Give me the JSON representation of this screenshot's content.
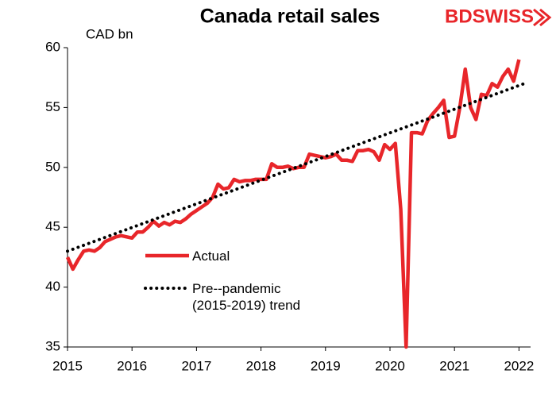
{
  "chart_data": {
    "type": "line",
    "title": "Canada retail sales",
    "logo": "BDSWISS",
    "y_label": "CAD bn",
    "xlim": [
      2015,
      2022.18
    ],
    "xticks": [
      2015,
      2016,
      2017,
      2018,
      2019,
      2020,
      2021,
      2022
    ],
    "ylim": [
      35,
      60
    ],
    "yticks": [
      35,
      40,
      45,
      50,
      55,
      60
    ],
    "series": [
      {
        "name": "Actual",
        "color": "#e8262a",
        "style": "solid",
        "x": [
          2015,
          2015.083,
          2015.167,
          2015.25,
          2015.333,
          2015.417,
          2015.5,
          2015.583,
          2015.667,
          2015.75,
          2015.833,
          2015.917,
          2016,
          2016.083,
          2016.167,
          2016.25,
          2016.333,
          2016.417,
          2016.5,
          2016.583,
          2016.667,
          2016.75,
          2016.833,
          2016.917,
          2017,
          2017.083,
          2017.167,
          2017.25,
          2017.333,
          2017.417,
          2017.5,
          2017.583,
          2017.667,
          2017.75,
          2017.833,
          2017.917,
          2018,
          2018.083,
          2018.167,
          2018.25,
          2018.333,
          2018.417,
          2018.5,
          2018.583,
          2018.667,
          2018.75,
          2018.833,
          2018.917,
          2019,
          2019.083,
          2019.167,
          2019.25,
          2019.333,
          2019.417,
          2019.5,
          2019.583,
          2019.667,
          2019.75,
          2019.833,
          2019.917,
          2020,
          2020.083,
          2020.167,
          2020.25,
          2020.333,
          2020.417,
          2020.5,
          2020.583,
          2020.667,
          2020.75,
          2020.833,
          2020.917,
          2021,
          2021.083,
          2021.167,
          2021.25,
          2021.333,
          2021.417,
          2021.5,
          2021.583,
          2021.667,
          2021.75,
          2021.833,
          2021.917,
          2022
        ],
        "values": [
          42.5,
          41.5,
          42.3,
          43.0,
          43.1,
          43.0,
          43.3,
          43.8,
          44.0,
          44.2,
          44.3,
          44.2,
          44.1,
          44.6,
          44.6,
          45.0,
          45.5,
          45.1,
          45.4,
          45.2,
          45.5,
          45.4,
          45.7,
          46.1,
          46.4,
          46.7,
          47.0,
          47.5,
          48.6,
          48.2,
          48.3,
          49.0,
          48.8,
          48.9,
          48.9,
          49.0,
          49.0,
          49.0,
          50.3,
          50.0,
          50.0,
          50.1,
          49.9,
          50.0,
          50.0,
          51.1,
          51.0,
          50.9,
          50.8,
          50.9,
          51.1,
          50.6,
          50.6,
          50.5,
          51.4,
          51.4,
          51.5,
          51.3,
          50.6,
          51.9,
          51.5,
          52.0,
          46.5,
          35.0,
          52.9,
          52.9,
          52.8,
          53.9,
          54.5,
          55.0,
          55.6,
          52.5,
          52.6,
          55.0,
          58.2,
          55.0,
          54.0,
          56.1,
          56.0,
          57.0,
          56.7,
          57.6,
          58.2,
          57.2,
          59.0
        ]
      },
      {
        "name": "Pre--pandemic (2015-2019) trend",
        "color": "#000000",
        "style": "dotted",
        "x": [
          2015,
          2022.083
        ],
        "values": [
          43.0,
          57.0
        ]
      }
    ]
  }
}
